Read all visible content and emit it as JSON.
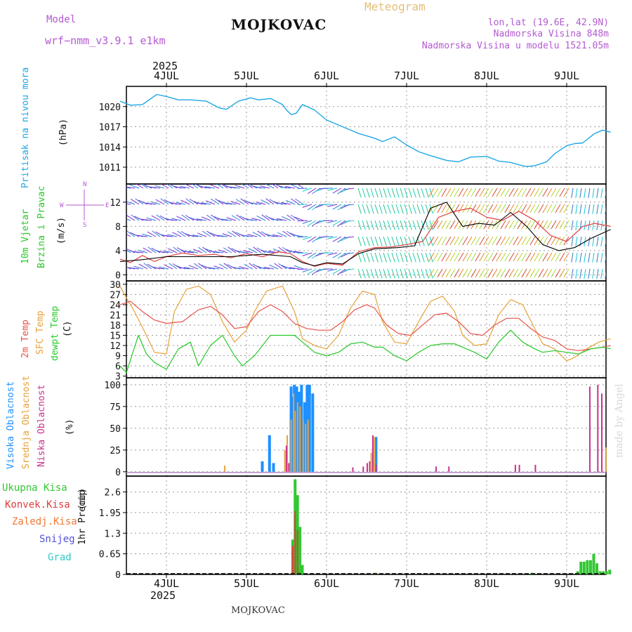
{
  "header": {
    "model_label": "Model",
    "model_name": "wrf−nmm_v3.9.1  e1km",
    "station": "MOJKOVAC",
    "chart_type": "Meteogram",
    "coords": "lon,lat (19.6E, 42.9N)",
    "elevation": "Nadmorska Visina 848m",
    "model_elevation": "Nadmorska Visina u modelu 1521.05m",
    "footer_station": "MOJKOVAC",
    "watermark": "made by Angel",
    "year": "2025"
  },
  "colors": {
    "pressure": "#1ea7e6",
    "wind_speed": "#e04040",
    "wind_mean": "#000000",
    "temp_2m": "#e8524a",
    "temp_sfc": "#e8a23a",
    "dewpt": "#28c828",
    "cloud_high": "#1e90ff",
    "cloud_mid": "#e8a23a",
    "cloud_low": "#c8328c",
    "precip_total": "#32c832",
    "precip_conv": "#e03c3c",
    "precip_frozen": "#f07832",
    "snow": "#5050dc",
    "hail": "#32c8c8",
    "title_purple": "#b45ad2",
    "meteogram_orange": "#e6be78"
  },
  "chart_data": [
    {
      "id": "pressure",
      "type": "line",
      "ylabel_name": "Pritisak na nivou mora",
      "ylabel_unit": "(hPa)",
      "yticks": [
        1011,
        1014,
        1017,
        1020
      ],
      "ylim": [
        1008.5,
        1023
      ],
      "x_days": [
        "4JUL",
        "5JUL",
        "6JUL",
        "7JUL",
        "8JUL",
        "9JUL"
      ],
      "series": [
        {
          "x": [
            -0.58,
            -0.45,
            -0.3,
            -0.12,
            0.0,
            0.15,
            0.3,
            0.5,
            0.66,
            0.75,
            0.9,
            1.05,
            1.15,
            1.3,
            1.45,
            1.5,
            1.56,
            1.62,
            1.7,
            1.85,
            2.0,
            2.2,
            2.4,
            2.6,
            2.7,
            2.85,
            3.0,
            3.15,
            3.3,
            3.5,
            3.65,
            3.8,
            4.0,
            4.15,
            4.3,
            4.45,
            4.5,
            4.6,
            4.75,
            4.85,
            5.0,
            5.1,
            5.2,
            5.35,
            5.45,
            5.55
          ],
          "values": [
            1020.8,
            1020.2,
            1020.3,
            1021.8,
            1021.5,
            1021.0,
            1021.0,
            1020.8,
            1019.8,
            1019.6,
            1020.8,
            1021.3,
            1021.0,
            1021.2,
            1020.3,
            1019.5,
            1018.8,
            1019.0,
            1020.3,
            1019.5,
            1018.0,
            1017.0,
            1016.0,
            1015.3,
            1014.8,
            1015.5,
            1014.3,
            1013.3,
            1012.7,
            1012.0,
            1011.8,
            1012.5,
            1012.6,
            1011.9,
            1011.7,
            1011.2,
            1011.1,
            1011.2,
            1011.8,
            1013.0,
            1014.2,
            1014.5,
            1014.6,
            1016.0,
            1016.5,
            1016.2
          ]
        }
      ]
    },
    {
      "id": "wind",
      "type": "line",
      "ylabel_name": "10m Vjetar",
      "ylabel_name2": "Brzina i Pravac",
      "ylabel_unit": "(m/s)",
      "compass": {
        "n": "N",
        "s": "S",
        "e": "E",
        "w": "W"
      },
      "yticks": [
        0,
        4,
        8,
        12
      ],
      "ylim": [
        -1,
        15
      ],
      "series": [
        {
          "name": "speed",
          "x": [
            -0.58,
            -0.45,
            -0.3,
            -0.15,
            0.0,
            0.2,
            0.4,
            0.6,
            0.8,
            1.0,
            1.2,
            1.4,
            1.55,
            1.7,
            1.85,
            2.0,
            2.2,
            2.4,
            2.6,
            2.8,
            3.0,
            3.2,
            3.4,
            3.6,
            3.8,
            4.0,
            4.2,
            4.4,
            4.6,
            4.8,
            5.0,
            5.2,
            5.35,
            5.55
          ],
          "values": [
            2.6,
            2.0,
            3.2,
            2.2,
            3.0,
            3.6,
            3.2,
            3.4,
            2.8,
            3.5,
            3.0,
            3.8,
            3.5,
            2.2,
            1.4,
            1.9,
            1.6,
            3.8,
            4.5,
            4.6,
            5.0,
            5.5,
            9.5,
            10.5,
            11.0,
            9.5,
            9.0,
            10.5,
            9.0,
            6.5,
            5.5,
            8.0,
            8.5,
            8.0
          ]
        },
        {
          "name": "mean",
          "x": [
            -0.58,
            -0.3,
            0.0,
            0.4,
            0.8,
            1.2,
            1.55,
            1.7,
            1.85,
            2.0,
            2.2,
            2.4,
            2.6,
            2.9,
            3.1,
            3.3,
            3.5,
            3.7,
            3.9,
            4.1,
            4.3,
            4.5,
            4.7,
            4.9,
            5.1,
            5.3,
            5.55
          ],
          "values": [
            2.2,
            2.5,
            3.0,
            3.0,
            3.0,
            3.4,
            3.0,
            2.0,
            1.5,
            2.0,
            1.8,
            3.5,
            4.3,
            4.5,
            4.8,
            11.0,
            12.0,
            8.0,
            8.5,
            8.2,
            10.3,
            8.0,
            5.0,
            4.0,
            4.5,
            6.0,
            7.5
          ]
        }
      ]
    },
    {
      "id": "temperature",
      "type": "line",
      "ylabel_name": "2m Temp",
      "ylabel_name2": "SFC Temp",
      "ylabel_name3": "dewpt Temp",
      "ylabel_unit": "(C)",
      "yticks": [
        3,
        6,
        9,
        12,
        15,
        18,
        21,
        24,
        27,
        30
      ],
      "ylim": [
        2.5,
        31
      ],
      "series": [
        {
          "name": "2m Temp",
          "x": [
            -0.58,
            -0.45,
            -0.3,
            -0.15,
            0.0,
            0.2,
            0.4,
            0.55,
            0.7,
            0.85,
            1.0,
            1.15,
            1.3,
            1.45,
            1.6,
            1.75,
            1.9,
            2.05,
            2.2,
            2.35,
            2.5,
            2.6,
            2.75,
            2.9,
            3.05,
            3.2,
            3.35,
            3.5,
            3.65,
            3.8,
            3.95,
            4.1,
            4.25,
            4.4,
            4.55,
            4.7,
            4.85,
            5.0,
            5.15,
            5.3,
            5.45,
            5.55
          ],
          "values": [
            24.0,
            25.0,
            22.0,
            19.5,
            18.5,
            19.0,
            22.5,
            23.5,
            21.0,
            17.0,
            17.5,
            22.0,
            24.0,
            22.0,
            18.5,
            17.0,
            16.5,
            16.5,
            19.0,
            22.5,
            24.0,
            23.0,
            18.0,
            15.5,
            15.0,
            18.0,
            21.0,
            21.5,
            19.0,
            15.5,
            15.0,
            18.0,
            20.0,
            20.0,
            17.0,
            14.5,
            13.5,
            11.0,
            10.5,
            11.0,
            11.5,
            12.0
          ]
        },
        {
          "name": "SFC Temp",
          "x": [
            -0.58,
            -0.5,
            -0.4,
            -0.25,
            -0.15,
            0.0,
            0.1,
            0.25,
            0.4,
            0.55,
            0.7,
            0.85,
            1.0,
            1.1,
            1.25,
            1.45,
            1.6,
            1.7,
            1.85,
            2.0,
            2.15,
            2.3,
            2.45,
            2.6,
            2.7,
            2.85,
            3.0,
            3.15,
            3.3,
            3.45,
            3.6,
            3.7,
            3.85,
            4.0,
            4.15,
            4.3,
            4.45,
            4.6,
            4.7,
            4.85,
            5.0,
            5.1,
            5.25,
            5.4,
            5.55
          ],
          "values": [
            29.5,
            26.0,
            22.0,
            15.0,
            10.0,
            9.5,
            22.0,
            28.5,
            29.5,
            27.0,
            19.0,
            13.0,
            16.5,
            22.0,
            28.0,
            29.5,
            22.0,
            14.0,
            12.0,
            11.0,
            15.0,
            23.0,
            28.0,
            27.0,
            19.0,
            13.0,
            12.5,
            19.0,
            25.0,
            26.5,
            22.0,
            15.0,
            12.0,
            12.5,
            21.0,
            25.5,
            24.0,
            17.0,
            12.5,
            11.0,
            7.5,
            8.5,
            11.0,
            13.0,
            14.0
          ]
        },
        {
          "name": "dewpt Temp",
          "x": [
            -0.58,
            -0.5,
            -0.35,
            -0.25,
            -0.15,
            0.0,
            0.15,
            0.3,
            0.4,
            0.55,
            0.7,
            0.85,
            0.95,
            1.1,
            1.3,
            1.45,
            1.6,
            1.7,
            1.85,
            2.0,
            2.15,
            2.3,
            2.45,
            2.6,
            2.7,
            2.85,
            3.0,
            3.15,
            3.3,
            3.45,
            3.6,
            3.7,
            3.85,
            4.0,
            4.15,
            4.3,
            4.45,
            4.6,
            4.7,
            4.85,
            5.0,
            5.15,
            5.3,
            5.45,
            5.55
          ],
          "values": [
            6.0,
            4.0,
            15.0,
            9.5,
            7.0,
            5.0,
            11.0,
            13.0,
            6.0,
            12.0,
            15.0,
            9.0,
            6.0,
            9.0,
            15.0,
            15.0,
            15.0,
            13.0,
            10.0,
            9.0,
            10.0,
            12.5,
            13.0,
            11.5,
            11.5,
            9.0,
            7.5,
            10.0,
            12.0,
            12.5,
            12.5,
            11.5,
            10.0,
            8.0,
            13.0,
            16.5,
            13.0,
            11.0,
            10.0,
            10.5,
            10.0,
            9.5,
            11.0,
            11.5,
            11.0
          ]
        }
      ]
    },
    {
      "id": "clouds",
      "type": "bar",
      "ylabel_name": "Visoka Oblacnost",
      "ylabel_name2": "Srednja Oblacnost",
      "ylabel_name3": "Niska Oblacnost",
      "ylabel_unit": "(%)",
      "yticks": [
        0,
        25,
        50,
        75,
        100
      ],
      "ylim": [
        -5,
        108
      ],
      "series": [
        {
          "name": "Visoka Oblacnost",
          "x": [
            1.18,
            1.27,
            1.32,
            1.54,
            1.56,
            1.58,
            1.61,
            1.64,
            1.67,
            1.71,
            1.74,
            1.77,
            1.81,
            2.6
          ],
          "values": [
            12,
            42,
            10,
            98,
            86,
            100,
            98,
            92,
            100,
            80,
            100,
            100,
            90,
            40
          ]
        },
        {
          "name": "Srednja Oblacnost",
          "x": [
            0.72,
            1.47,
            1.5,
            1.55,
            1.58,
            1.6,
            1.63,
            1.66,
            1.7,
            1.73,
            1.76,
            2.55,
            2.59,
            5.48
          ],
          "values": [
            7,
            25,
            42,
            60,
            90,
            70,
            80,
            75,
            60,
            55,
            60,
            22,
            40,
            28
          ]
        },
        {
          "name": "Niska Oblacnost",
          "x": [
            1.49,
            1.52,
            2.32,
            2.45,
            2.5,
            2.53,
            2.57,
            2.61,
            3.36,
            3.52,
            4.35,
            4.4,
            4.6,
            5.28,
            5.38,
            5.43
          ],
          "values": [
            30,
            10,
            5,
            6,
            10,
            12,
            42,
            8,
            6,
            6,
            8,
            8,
            8,
            98,
            100,
            90
          ]
        }
      ]
    },
    {
      "id": "precip",
      "type": "bar",
      "ylabel_name": "1hr Precip",
      "ylabel_unit": "(mm)",
      "legend": [
        "Ukupna Kisa",
        "Konvek.Kisa",
        "Zaledj.Kisa",
        "Snijeg",
        "Grad"
      ],
      "yticks": [
        0,
        0.65,
        1.3,
        1.95,
        2.6
      ],
      "ylim": [
        0,
        3.1
      ],
      "series": [
        {
          "name": "Ukupna Kisa",
          "x": [
            1.56,
            1.59,
            1.62,
            1.65,
            1.68,
            2.59,
            4.55,
            5.12,
            5.16,
            5.2,
            5.24,
            5.28,
            5.32,
            5.36,
            5.4,
            5.44,
            5.48,
            5.52
          ],
          "values": [
            1.1,
            3.0,
            2.5,
            1.5,
            0.3,
            0.05,
            0.05,
            0.1,
            0.4,
            0.4,
            0.45,
            0.45,
            0.65,
            0.35,
            0.1,
            0.1,
            0.1,
            0.15
          ]
        },
        {
          "name": "Konvek.Kisa",
          "x": [
            1.56,
            1.59,
            1.62,
            2.59
          ],
          "values": [
            0.9,
            2.0,
            1.4,
            0.04
          ]
        }
      ]
    }
  ]
}
